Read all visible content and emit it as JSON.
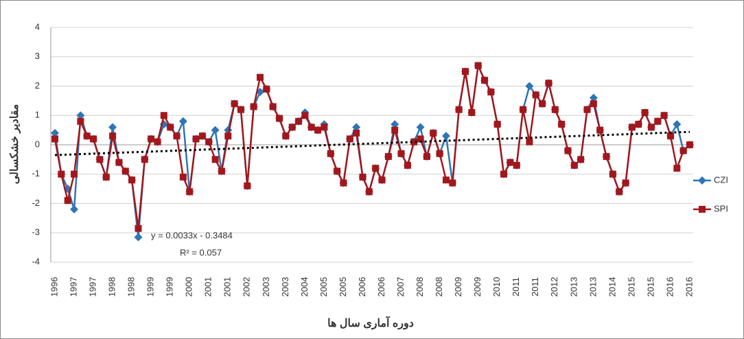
{
  "chart_data": {
    "type": "line",
    "y_label": "مقادیر خشکسالی",
    "x_label": "دوره آماری سال ها",
    "categories": [
      "1996",
      null,
      null,
      "1997",
      null,
      null,
      "1997",
      null,
      null,
      "1998",
      null,
      null,
      "1998",
      null,
      null,
      "1999",
      null,
      null,
      "1999",
      null,
      null,
      "2000",
      null,
      null,
      "2001",
      null,
      null,
      "2001",
      null,
      null,
      "2002",
      null,
      null,
      "2003",
      null,
      null,
      "2003",
      null,
      null,
      "2004",
      null,
      null,
      "2005",
      null,
      null,
      "2005",
      null,
      null,
      "2006",
      null,
      null,
      "2006",
      null,
      null,
      "2007",
      null,
      null,
      "2008",
      null,
      null,
      "2008",
      null,
      null,
      "2009",
      null,
      null,
      "2009",
      null,
      null,
      "2010",
      null,
      null,
      "2011",
      null,
      null,
      "2011",
      null,
      null,
      "2012",
      null,
      null,
      "2013",
      null,
      null,
      "2013",
      null,
      null,
      "2014",
      null,
      null,
      "2015",
      null,
      null,
      "2015",
      null,
      null,
      "2016",
      null,
      null,
      "2016"
    ],
    "series": [
      {
        "name": "CZI",
        "color": "#2e75b6",
        "marker": "diamond",
        "values": [
          0.4,
          -1.0,
          -1.5,
          -2.2,
          1.0,
          0.3,
          0.2,
          -0.5,
          -1.1,
          0.6,
          -0.6,
          -0.9,
          -1.2,
          -3.15,
          -0.5,
          0.2,
          0.1,
          0.7,
          0.6,
          0.3,
          0.8,
          -1.6,
          0.2,
          0.3,
          0.1,
          0.5,
          -0.9,
          0.5,
          1.4,
          1.2,
          -1.4,
          1.3,
          1.8,
          1.9,
          1.3,
          0.9,
          0.3,
          0.6,
          0.8,
          1.1,
          0.6,
          0.5,
          0.7,
          -0.3,
          -0.9,
          -1.3,
          0.2,
          0.6,
          -1.1,
          -1.6,
          -0.8,
          -1.2,
          -0.4,
          0.7,
          -0.3,
          -0.7,
          0.1,
          0.6,
          -0.4,
          0.4,
          -0.3,
          0.3,
          -1.3,
          1.2,
          2.5,
          1.1,
          2.7,
          2.2,
          1.8,
          0.7,
          -1.0,
          -0.6,
          -0.7,
          1.2,
          2.0,
          1.7,
          1.4,
          2.1,
          1.2,
          0.7,
          -0.2,
          -0.7,
          -0.5,
          1.2,
          1.6,
          0.5,
          -0.4,
          -1.0,
          -1.6,
          -1.3,
          0.6,
          0.7,
          1.1,
          0.6,
          0.8,
          1.0,
          0.3,
          0.7,
          -0.2,
          0.0
        ]
      },
      {
        "name": "SPI",
        "color": "#a3171c",
        "marker": "square",
        "values": [
          0.2,
          -1.0,
          -1.9,
          -1.0,
          0.8,
          0.3,
          0.2,
          -0.5,
          -1.1,
          0.3,
          -0.6,
          -0.9,
          -1.2,
          -2.85,
          -0.5,
          0.2,
          0.1,
          1.0,
          0.6,
          0.3,
          -1.1,
          -1.6,
          0.2,
          0.3,
          0.1,
          -0.5,
          -0.9,
          0.3,
          1.4,
          1.2,
          -1.4,
          1.3,
          2.3,
          1.9,
          1.3,
          0.9,
          0.3,
          0.6,
          0.8,
          1.0,
          0.6,
          0.5,
          0.6,
          -0.3,
          -0.9,
          -1.3,
          0.2,
          0.4,
          -1.1,
          -1.6,
          -0.8,
          -1.2,
          -0.4,
          0.5,
          -0.3,
          -0.7,
          0.1,
          0.2,
          -0.4,
          0.4,
          -0.3,
          -1.2,
          -1.3,
          1.2,
          2.5,
          1.1,
          2.7,
          2.2,
          1.8,
          0.7,
          -1.0,
          -0.6,
          -0.7,
          1.2,
          0.1,
          1.7,
          1.4,
          2.1,
          1.2,
          0.7,
          -0.2,
          -0.7,
          -0.5,
          1.2,
          1.4,
          0.5,
          -0.4,
          -1.0,
          -1.6,
          -1.3,
          0.6,
          0.7,
          1.1,
          0.6,
          0.8,
          1.0,
          0.3,
          -0.8,
          -0.2,
          0.0
        ]
      }
    ],
    "trendline": {
      "start": -0.35,
      "end": 0.44,
      "equation": "y = 0.0033x - 0.3484",
      "r_squared": "R² = 0.057"
    },
    "ylim": [
      -4,
      4
    ],
    "yticks": [
      -4,
      -3,
      -2,
      -1,
      0,
      1,
      2,
      3,
      4
    ],
    "grid": true,
    "legend": "right"
  }
}
